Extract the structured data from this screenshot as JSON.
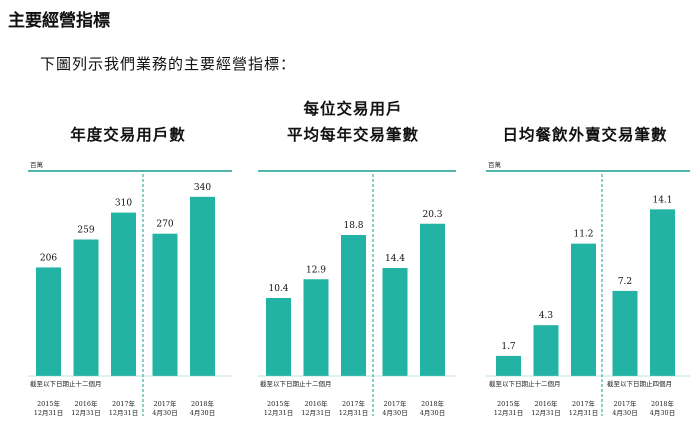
{
  "section_heading": "主要經營指標",
  "intro_text": "下圖列示我們業務的主要經營指標：",
  "colors": {
    "bar": "#22b3a4",
    "axis": "#1a9e8f",
    "divider": "#1a9e8f"
  },
  "chart_data": [
    {
      "type": "bar",
      "title_lines": [
        "年度交易用戶數"
      ],
      "unit": "百萬",
      "categories": [
        [
          "2015年",
          "12月31日"
        ],
        [
          "2016年",
          "12月31日"
        ],
        [
          "2017年",
          "12月31日"
        ],
        [
          "2017年",
          "4月30日"
        ],
        [
          "2018年",
          "4月30日"
        ]
      ],
      "values": [
        206,
        259,
        310,
        270,
        340
      ],
      "value_labels": [
        "206",
        "259",
        "310",
        "270",
        "340"
      ],
      "group_notes": [
        "截至以下日期止十二個月"
      ],
      "divider_after_index": 2,
      "ylim": [
        0,
        370
      ]
    },
    {
      "type": "bar",
      "title_lines": [
        "每位交易用戶",
        "平均每年交易筆數"
      ],
      "unit": "",
      "categories": [
        [
          "2015年",
          "12月31日"
        ],
        [
          "2016年",
          "12月31日"
        ],
        [
          "2017年",
          "12月31日"
        ],
        [
          "2017年",
          "4月30日"
        ],
        [
          "2018年",
          "4月30日"
        ]
      ],
      "values": [
        10.4,
        12.9,
        18.8,
        14.4,
        20.3
      ],
      "value_labels": [
        "10.4",
        "12.9",
        "18.8",
        "14.4",
        "20.3"
      ],
      "group_notes": [
        "截至以下日期止十二個月"
      ],
      "divider_after_index": 2,
      "ylim": [
        0,
        26
      ]
    },
    {
      "type": "bar",
      "title_lines": [
        "日均餐飲外賣交易筆數"
      ],
      "unit": "百萬",
      "categories": [
        [
          "2015年",
          "12月31日"
        ],
        [
          "2016年",
          "12月31日"
        ],
        [
          "2017年",
          "12月31日"
        ],
        [
          "2017年",
          "4月30日"
        ],
        [
          "2018年",
          "4月30日"
        ]
      ],
      "values": [
        1.7,
        4.3,
        11.2,
        7.2,
        14.1
      ],
      "value_labels": [
        "1.7",
        "4.3",
        "11.2",
        "7.2",
        "14.1"
      ],
      "group_notes": [
        "截至以下日期止十二個月",
        "截至以下日期止四個月"
      ],
      "divider_after_index": 2,
      "ylim": [
        0,
        16.5
      ]
    }
  ]
}
